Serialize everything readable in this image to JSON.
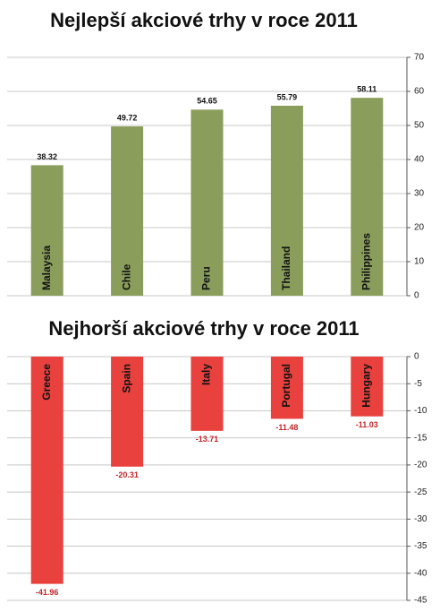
{
  "chart_data": [
    {
      "type": "bar",
      "title": "Nejlepší akciové trhy v roce 2011",
      "categories": [
        "Malaysia",
        "Chile",
        "Peru",
        "Thailand",
        "Philippines"
      ],
      "values": [
        38.32,
        49.72,
        54.65,
        55.79,
        58.11
      ],
      "color": "#8a9d5b",
      "ylim": [
        0,
        70
      ],
      "yticks": [
        0,
        10,
        20,
        30,
        40,
        50,
        60,
        70
      ],
      "grid": true
    },
    {
      "type": "bar",
      "title": "Nejhorší akciové trhy v roce 2011",
      "categories": [
        "Greece",
        "Spain",
        "Italy",
        "Portugal",
        "Hungary"
      ],
      "values": [
        -41.96,
        -20.31,
        -13.71,
        -11.48,
        -11.03
      ],
      "color": "#e8413e",
      "ylim": [
        -45,
        0
      ],
      "yticks": [
        0,
        -5,
        -10,
        -15,
        -20,
        -25,
        -30,
        -35,
        -40,
        -45
      ],
      "grid": true
    }
  ]
}
